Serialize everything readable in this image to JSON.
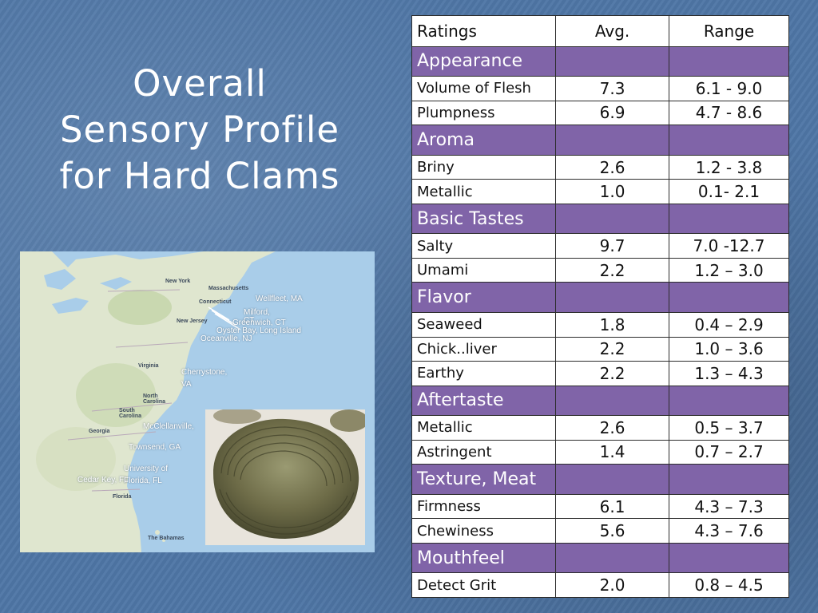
{
  "slide": {
    "title_lines": [
      "Overall",
      "Sensory Profile",
      "for Hard Clams"
    ]
  },
  "map": {
    "sites": {
      "wellfleet": "Wellfleet, MA",
      "milford": "Milford, CT",
      "greenwich": "Greenwich, CT",
      "oyster_bay": "Oyster Bay, Long Island",
      "oceanville": "Oceanville, NJ",
      "cherrystone": "Cherrystone, VA",
      "mcclellanville": "McClellanville,",
      "townsend": "Townsend, GA",
      "university": "University of Florida, FL",
      "cedar_key": "Cedar Key, FL"
    },
    "geo": {
      "new_york": "New York",
      "massachusetts": "Massachusetts",
      "connecticut": "Connecticut",
      "new_jersey": "New Jersey",
      "virginia": "Virginia",
      "north_carolina": "North Carolina",
      "south_carolina": "South Carolina",
      "georgia": "Georgia",
      "florida": "Florida",
      "the_bahamas": "The Bahamas"
    }
  },
  "table": {
    "headers": [
      "Ratings",
      "Avg.",
      "Range"
    ],
    "sections": [
      {
        "category": "Appearance",
        "rows": [
          {
            "attr": "Volume of Flesh",
            "avg": "7.3",
            "range": "6.1 - 9.0"
          },
          {
            "attr": "Plumpness",
            "avg": "6.9",
            "range": "4.7 - 8.6"
          }
        ]
      },
      {
        "category": "Aroma",
        "rows": [
          {
            "attr": "Briny",
            "avg": "2.6",
            "range": "1.2 - 3.8"
          },
          {
            "attr": "Metallic",
            "avg": "1.0",
            "range": "0.1- 2.1"
          }
        ]
      },
      {
        "category": "Basic Tastes",
        "rows": [
          {
            "attr": "Salty",
            "avg": "9.7",
            "range": "7.0 -12.7"
          },
          {
            "attr": "Umami",
            "avg": "2.2",
            "range": "1.2 – 3.0"
          }
        ]
      },
      {
        "category": "Flavor",
        "rows": [
          {
            "attr": "Seaweed",
            "avg": "1.8",
            "range": "0.4 – 2.9"
          },
          {
            "attr": "Chick..liver",
            "avg": "2.2",
            "range": "1.0 – 3.6"
          },
          {
            "attr": "Earthy",
            "avg": "2.2",
            "range": "1.3 – 4.3"
          }
        ]
      },
      {
        "category": "Aftertaste",
        "rows": [
          {
            "attr": "Metallic",
            "avg": "2.6",
            "range": "0.5 – 3.7"
          },
          {
            "attr": "Astringent",
            "avg": "1.4",
            "range": "0.7 – 2.7"
          }
        ]
      },
      {
        "category": "Texture, Meat",
        "rows": [
          {
            "attr": "Firmness",
            "avg": "6.1",
            "range": "4.3 – 7.3"
          },
          {
            "attr": "Chewiness",
            "avg": "5.6",
            "range": "4.3 – 7.6"
          }
        ]
      },
      {
        "category": "Mouthfeel",
        "rows": [
          {
            "attr": "Detect Grit",
            "avg": "2.0",
            "range": "0.8 – 4.5"
          }
        ]
      }
    ]
  },
  "colors": {
    "background": "#4f76a6",
    "category_fill": "#8064a8",
    "title_text": "#ffffff"
  }
}
